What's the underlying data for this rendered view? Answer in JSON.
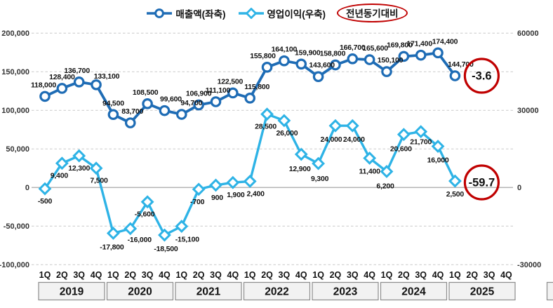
{
  "legend": {
    "revenue_label": "매출액(좌축)",
    "profit_label": "영업이익(우축)",
    "yoy_label": "전년동기대비"
  },
  "colors": {
    "revenue": "#1e6cb5",
    "profit": "#2eb3e6",
    "annotation_red": "#c00000",
    "gridline": "#c9c9c9",
    "zero_line": "#9e9e9e",
    "label_text": "#111111",
    "tick_text": "#333333",
    "year_box_fill": "#f2f2f2",
    "year_box_border": "#8c8c8c"
  },
  "chart_data": {
    "type": "line",
    "title": "",
    "legend_position": "top-center",
    "grid": "dashed-horizontal",
    "quarter_labels": [
      "1Q",
      "2Q",
      "3Q",
      "4Q"
    ],
    "years": [
      "2019",
      "2020",
      "2021",
      "2022",
      "2023",
      "2024",
      "2025"
    ],
    "series": [
      {
        "name": "매출액(좌축)",
        "axis": "left",
        "marker": "circle",
        "values": [
          118000,
          128400,
          136700,
          133100,
          94500,
          83700,
          108500,
          99600,
          94700,
          106900,
          111100,
          122500,
          115800,
          155800,
          164100,
          159900,
          143600,
          158800,
          166700,
          165600,
          150100,
          169800,
          171400,
          174400,
          144700
        ]
      },
      {
        "name": "영업이익(우축)",
        "axis": "right",
        "marker": "diamond",
        "values": [
          -500,
          9400,
          12300,
          7500,
          -17800,
          -16000,
          -5600,
          -18500,
          -15100,
          -700,
          900,
          1900,
          2400,
          28500,
          26000,
          12900,
          9300,
          24000,
          24000,
          11400,
          6200,
          20600,
          21700,
          16000,
          2500
        ]
      }
    ],
    "left_axis": {
      "min": -100000,
      "max": 200000,
      "tick_values": [
        200000,
        150000,
        100000,
        50000,
        0,
        -50000,
        -100000
      ],
      "tick_labels": [
        "200,000",
        "150,000",
        "100,000",
        "50,000",
        "0",
        "-50,000",
        "-100,000"
      ]
    },
    "right_axis": {
      "min": -30000,
      "max": 60000,
      "tick_values": [
        60000,
        30000,
        0,
        -30000
      ],
      "tick_labels": [
        "60000",
        "30000",
        "0",
        "-30000"
      ]
    },
    "annotations": [
      {
        "label": "-3.6",
        "attached_to_series": 0
      },
      {
        "label": "-59.7",
        "attached_to_series": 1
      }
    ]
  }
}
